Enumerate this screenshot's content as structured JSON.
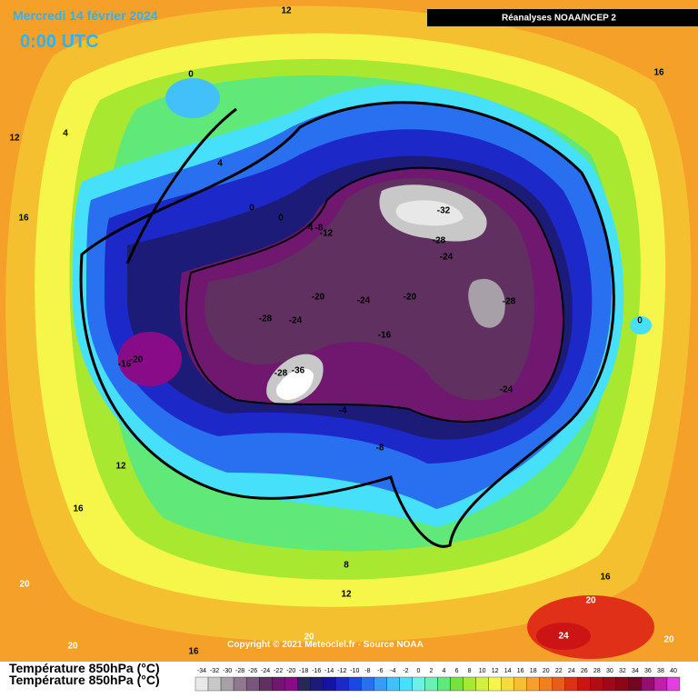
{
  "header": {
    "title": "Mercredi 14 février 2024",
    "time": "0:00 UTC",
    "source": "Réanalyses NOAA/NCEP 2"
  },
  "copyright": "Copyright © 2021 Meteociel.fr - Source NOAA",
  "legend": {
    "title": "Température 850hPa (°C)",
    "ticks": [
      -34,
      -32,
      -30,
      -28,
      -26,
      -24,
      -22,
      -20,
      -18,
      -16,
      -14,
      -12,
      -10,
      -8,
      -6,
      -4,
      -2,
      0,
      2,
      4,
      6,
      8,
      10,
      12,
      14,
      16,
      18,
      20,
      22,
      24,
      26,
      28,
      30,
      32,
      34,
      36,
      38,
      40
    ],
    "colors": [
      "#e8e8e8",
      "#c8c8c8",
      "#a8a0a8",
      "#907890",
      "#785878",
      "#603060",
      "#701870",
      "#880c88",
      "#282858",
      "#1c1c78",
      "#1414a0",
      "#1c28c8",
      "#1e46e6",
      "#2870f0",
      "#3a9af5",
      "#42c0fa",
      "#46e0fa",
      "#6ef0e8",
      "#6af0b4",
      "#60e878",
      "#78e040",
      "#a8e830",
      "#d2f03c",
      "#f5f54a",
      "#f5dc3a",
      "#f5c030",
      "#f5a028",
      "#f08020",
      "#ea5c1c",
      "#e03018",
      "#cc1414",
      "#b40c14",
      "#a00818",
      "#880818",
      "#700820",
      "#901070",
      "#c020a8",
      "#e040e0"
    ]
  },
  "contour_labels": [
    "12",
    "16",
    "12",
    "4",
    "0",
    "4",
    "16",
    "0",
    "0",
    "-4",
    "-8",
    "-12",
    "-32",
    "-28",
    "-24",
    "-20",
    "-24",
    "-20",
    "-28",
    "-28",
    "-24",
    "-16",
    "0",
    "-20",
    "-16",
    "-28",
    "-36",
    "-24",
    "-4",
    "-8",
    "12",
    "16",
    "8",
    "12",
    "16",
    "20",
    "20",
    "24",
    "20",
    "20",
    "16",
    "20"
  ]
}
